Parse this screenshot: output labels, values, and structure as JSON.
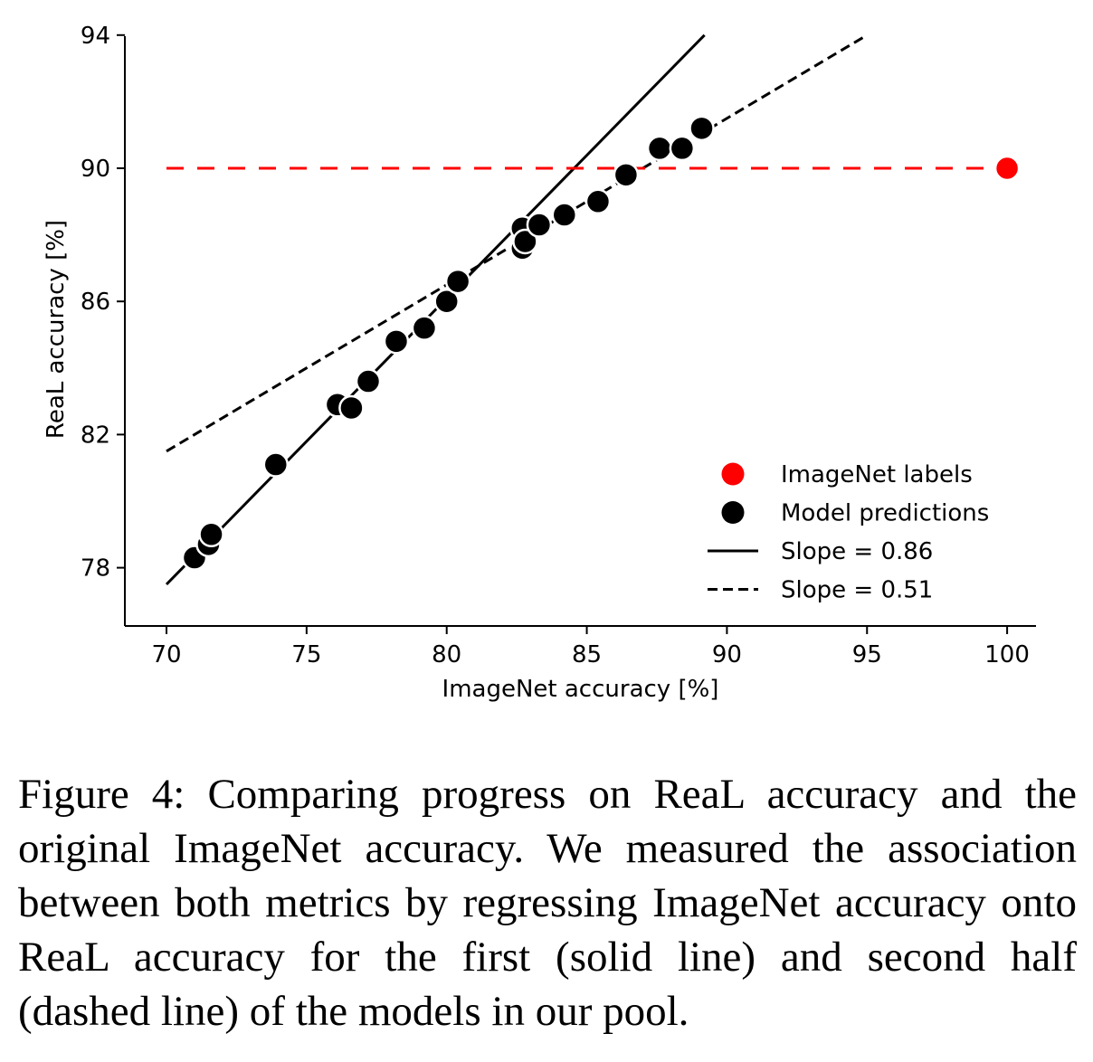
{
  "chart_data": {
    "type": "scatter",
    "xlabel": "ImageNet accuracy [%]",
    "ylabel": "ReaL accuracy [%]",
    "xlim": [
      68.5,
      101
    ],
    "ylim": [
      76.3,
      94
    ],
    "xticks": [
      70,
      75,
      80,
      85,
      90,
      95,
      100
    ],
    "yticks": [
      78,
      82,
      86,
      90,
      94
    ],
    "grid": false,
    "legend_position": "lower-right",
    "series": [
      {
        "name": "ImageNet labels",
        "kind": "points",
        "color": "#ff0000",
        "points": [
          [
            100,
            90.0
          ]
        ]
      },
      {
        "name": "Model predictions",
        "kind": "points",
        "color": "#000000",
        "points": [
          [
            71.0,
            78.3
          ],
          [
            71.5,
            78.7
          ],
          [
            71.6,
            79.0
          ],
          [
            73.9,
            81.1
          ],
          [
            76.1,
            82.9
          ],
          [
            76.6,
            82.8
          ],
          [
            77.2,
            83.6
          ],
          [
            78.2,
            84.8
          ],
          [
            79.2,
            85.2
          ],
          [
            80.0,
            86.0
          ],
          [
            80.4,
            86.6
          ],
          [
            82.7,
            87.6
          ],
          [
            82.7,
            88.2
          ],
          [
            82.8,
            87.8
          ],
          [
            83.3,
            88.3
          ],
          [
            84.2,
            88.6
          ],
          [
            85.4,
            89.0
          ],
          [
            86.4,
            89.8
          ],
          [
            87.6,
            90.6
          ],
          [
            88.4,
            90.6
          ],
          [
            89.1,
            91.2
          ]
        ]
      },
      {
        "name": "Slope = 0.86",
        "kind": "line",
        "style": "solid",
        "color": "#000000",
        "points": [
          [
            70,
            77.5
          ],
          [
            89.2,
            94.0
          ]
        ]
      },
      {
        "name": "Slope = 0.51",
        "kind": "line",
        "style": "dashed",
        "color": "#000000",
        "points": [
          [
            70,
            81.5
          ],
          [
            95,
            94.0
          ]
        ]
      },
      {
        "name": "",
        "kind": "hline",
        "style": "dashed",
        "color": "#ff0000",
        "y": 90.0,
        "x_range": [
          70,
          100
        ]
      }
    ]
  },
  "caption": "Figure 4: Comparing progress on ReaL accuracy and the original ImageNet accuracy. We measured the association between both metrics by regressing ImageNet accuracy onto ReaL accuracy for the first (solid line) and second half (dashed line) of the models in our pool."
}
